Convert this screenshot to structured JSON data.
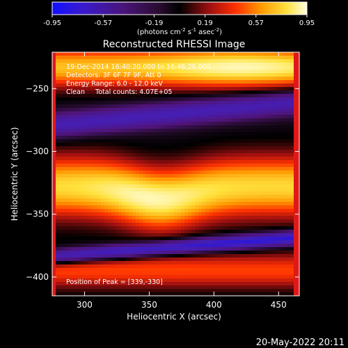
{
  "colorbar": {
    "ticks": [
      "-0.95",
      "-0.57",
      "-0.19",
      "0.19",
      "0.57",
      "0.95"
    ],
    "unit_main": "(photons cm",
    "unit_exp1": "-2",
    "unit_mid": " s",
    "unit_exp2": "-1",
    "unit_tail": " asec",
    "unit_exp3": "-2",
    "unit_close": ")",
    "range": [
      -0.95,
      0.95
    ]
  },
  "chart_data": {
    "type": "heatmap",
    "title": "Reconstructed RHESSI Image",
    "xlabel": "Heliocentric X (arcsec)",
    "ylabel": "Heliocentric Y (arcsec)",
    "xlim": [
      275,
      466
    ],
    "ylim": [
      -415,
      -221
    ],
    "xticks": [
      300,
      350,
      400,
      450
    ],
    "yticks": [
      -250,
      -300,
      -350,
      -400
    ],
    "xtick_labels": [
      "300",
      "350",
      "400",
      "450"
    ],
    "ytick_labels": [
      "−250",
      "−300",
      "−350",
      "−400"
    ],
    "annotations": [
      "19-Dec-2014 16:40:20.000 to 16:46:20.000",
      "Detectors: 3F 6F 7F 9F, Att 0",
      "Energy Range: 6.0 - 12.0 keV",
      "Clean     Total counts: 4.07E+05"
    ],
    "peak_label": "Position of Peak = [339,-330]",
    "peak": [
      339,
      -330
    ],
    "bands": [
      {
        "y_center": -233,
        "x_center": 420,
        "amplitude": 0.95
      },
      {
        "y_center": -328,
        "x_center": 350,
        "amplitude": 0.95
      },
      {
        "y_center": -395,
        "x_center": 330,
        "amplitude": 0.45
      }
    ],
    "colormap": "hot"
  },
  "footer": {
    "timestamp": "20-May-2022 20:11"
  }
}
